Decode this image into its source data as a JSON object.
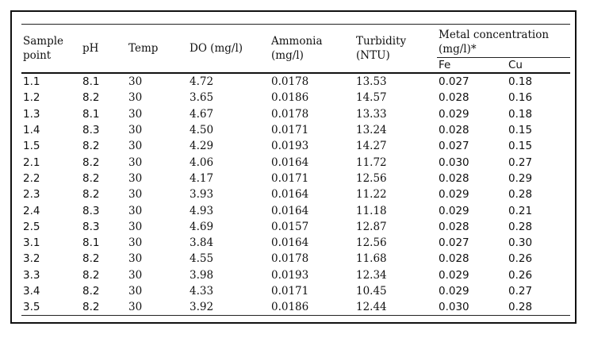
{
  "table": {
    "headers": {
      "sample_point": "Sample point",
      "ph": "pH",
      "temp": "Temp",
      "do": "DO (mg/l)",
      "ammonia": "Ammonia (mg/l)",
      "turbidity": "Turbidity (NTU)",
      "metal": "Metal concentration (mg/l)*",
      "fe": "Fe",
      "cu": "Cu"
    },
    "rows": [
      [
        "1.1",
        "8.1",
        "30",
        "4.72",
        "0.0178",
        "13.53",
        "0.027",
        "0.18"
      ],
      [
        "1.2",
        "8.2",
        "30",
        "3.65",
        "0.0186",
        "14.57",
        "0.028",
        "0.16"
      ],
      [
        "1.3",
        "8.1",
        "30",
        "4.67",
        "0.0178",
        "13.33",
        "0.029",
        "0.18"
      ],
      [
        "1.4",
        "8.3",
        "30",
        "4.50",
        "0.0171",
        "13.24",
        "0.028",
        "0.15"
      ],
      [
        "1.5",
        "8.2",
        "30",
        "4.29",
        "0.0193",
        "14.27",
        "0.027",
        "0.15"
      ],
      [
        "2.1",
        "8.2",
        "30",
        "4.06",
        "0.0164",
        "11.72",
        "0.030",
        "0.27"
      ],
      [
        "2.2",
        "8.2",
        "30",
        "4.17",
        "0.0171",
        "12.56",
        "0.028",
        "0.29"
      ],
      [
        "2.3",
        "8.2",
        "30",
        "3.93",
        "0.0164",
        "11.22",
        "0.029",
        "0.28"
      ],
      [
        "2.4",
        "8.3",
        "30",
        "4.93",
        "0.0164",
        "11.18",
        "0.029",
        "0.21"
      ],
      [
        "2.5",
        "8.3",
        "30",
        "4.69",
        "0.0157",
        "12.87",
        "0.028",
        "0.28"
      ],
      [
        "3.1",
        "8.1",
        "30",
        "3.84",
        "0.0164",
        "12.56",
        "0.027",
        "0.30"
      ],
      [
        "3.2",
        "8.2",
        "30",
        "4.55",
        "0.0178",
        "11.68",
        "0.028",
        "0.26"
      ],
      [
        "3.3",
        "8.2",
        "30",
        "3.98",
        "0.0193",
        "12.34",
        "0.029",
        "0.26"
      ],
      [
        "3.4",
        "8.2",
        "30",
        "4.33",
        "0.0171",
        "10.45",
        "0.029",
        "0.27"
      ],
      [
        "3.5",
        "8.2",
        "30",
        "3.92",
        "0.0186",
        "12.44",
        "0.030",
        "0.28"
      ]
    ]
  }
}
